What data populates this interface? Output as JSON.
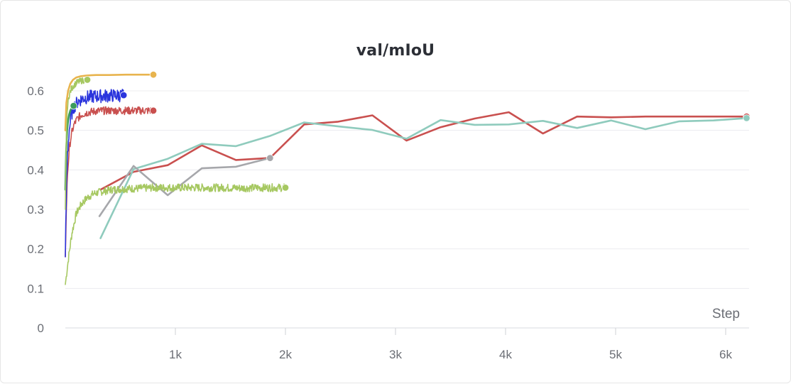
{
  "chart_data": {
    "type": "line",
    "title": "val/mIoU",
    "xlabel": "Step",
    "ylabel": "",
    "xlim": [
      0,
      6200
    ],
    "ylim": [
      0,
      0.6
    ],
    "x_ticks": [
      {
        "value": 1000,
        "label": "1k"
      },
      {
        "value": 2000,
        "label": "2k"
      },
      {
        "value": 3000,
        "label": "3k"
      },
      {
        "value": 4000,
        "label": "4k"
      },
      {
        "value": 5000,
        "label": "5k"
      },
      {
        "value": 6000,
        "label": "6k"
      }
    ],
    "y_ticks": [
      {
        "value": 0,
        "label": "0"
      },
      {
        "value": 0.1,
        "label": "0.1"
      },
      {
        "value": 0.2,
        "label": "0.2"
      },
      {
        "value": 0.3,
        "label": "0.3"
      },
      {
        "value": 0.4,
        "label": "0.4"
      },
      {
        "value": 0.5,
        "label": "0.5"
      },
      {
        "value": 0.6,
        "label": "0.6"
      }
    ],
    "grid": "horizontal",
    "legend": "none",
    "series": [
      {
        "color": "#c9504f",
        "x": [
          320,
          620,
          930,
          1240,
          1550,
          1860,
          2170,
          2480,
          2790,
          3100,
          3410,
          3720,
          4030,
          4340,
          4650,
          4960,
          5270,
          5580,
          5890,
          6190
        ],
        "y": [
          0.35,
          0.395,
          0.412,
          0.462,
          0.425,
          0.43,
          0.515,
          0.522,
          0.538,
          0.474,
          0.508,
          0.53,
          0.546,
          0.492,
          0.535,
          0.533,
          0.535,
          0.535,
          0.535,
          0.535
        ],
        "end_marker": true
      },
      {
        "color": "#8fcbbd",
        "x": [
          320,
          620,
          930,
          1240,
          1550,
          1860,
          2170,
          2480,
          2790,
          3100,
          3410,
          3720,
          4030,
          4340,
          4650,
          4960,
          5270,
          5580,
          5890,
          6190
        ],
        "y": [
          0.227,
          0.402,
          0.428,
          0.466,
          0.46,
          0.486,
          0.52,
          0.51,
          0.501,
          0.479,
          0.526,
          0.514,
          0.515,
          0.524,
          0.506,
          0.525,
          0.503,
          0.523,
          0.525,
          0.531
        ],
        "end_marker": true
      },
      {
        "color": "#a6a7ab",
        "x": [
          310,
          620,
          930,
          1240,
          1550,
          1860
        ],
        "y": [
          0.283,
          0.41,
          0.336,
          0.404,
          0.408,
          0.43
        ],
        "end_marker": true
      },
      {
        "color": "#a6c861",
        "x": [
          0,
          30,
          60,
          100,
          150,
          200,
          260,
          330,
          420,
          520,
          650,
          800,
          1000,
          1200,
          1400,
          1600,
          1800,
          2000
        ],
        "y": [
          0.11,
          0.18,
          0.24,
          0.29,
          0.315,
          0.33,
          0.34,
          0.345,
          0.35,
          0.352,
          0.353,
          0.355,
          0.355,
          0.355,
          0.355,
          0.354,
          0.355,
          0.355
        ],
        "noise": 0.01,
        "end_marker": true
      },
      {
        "color": "#e8b44e",
        "x": [
          0,
          10,
          25,
          45,
          70,
          100,
          140,
          200,
          280,
          400,
          550,
          700,
          800
        ],
        "y": [
          0.5,
          0.57,
          0.6,
          0.618,
          0.628,
          0.634,
          0.637,
          0.639,
          0.64,
          0.64,
          0.641,
          0.641,
          0.641
        ],
        "end_marker": true
      },
      {
        "color": "#c9504f",
        "x": [
          0,
          10,
          20,
          35,
          55,
          80,
          110,
          150,
          200,
          280,
          380,
          500,
          650,
          800
        ],
        "y": [
          0.18,
          0.31,
          0.39,
          0.45,
          0.49,
          0.515,
          0.53,
          0.54,
          0.545,
          0.549,
          0.55,
          0.55,
          0.55,
          0.55
        ],
        "noise": 0.01,
        "end_marker": true
      },
      {
        "color": "#2b35dd",
        "x": [
          0,
          10,
          20,
          35,
          55,
          80,
          110,
          150,
          200,
          260,
          330,
          420,
          530
        ],
        "y": [
          0.18,
          0.35,
          0.44,
          0.5,
          0.54,
          0.56,
          0.572,
          0.58,
          0.584,
          0.586,
          0.587,
          0.588,
          0.589
        ],
        "noise": 0.017,
        "end_marker": true
      },
      {
        "color": "#3c9c5b",
        "x": [
          0,
          8,
          16,
          25,
          35,
          45,
          55,
          65,
          75
        ],
        "y": [
          0.35,
          0.45,
          0.5,
          0.525,
          0.54,
          0.55,
          0.555,
          0.56,
          0.562
        ],
        "end_marker": true
      },
      {
        "color": "#a6c861",
        "x": [
          0,
          10,
          20,
          35,
          55,
          80,
          110,
          150,
          200
        ],
        "y": [
          0.3,
          0.5,
          0.56,
          0.59,
          0.605,
          0.615,
          0.622,
          0.626,
          0.628
        ],
        "noise": 0.008,
        "end_marker": true
      }
    ]
  }
}
